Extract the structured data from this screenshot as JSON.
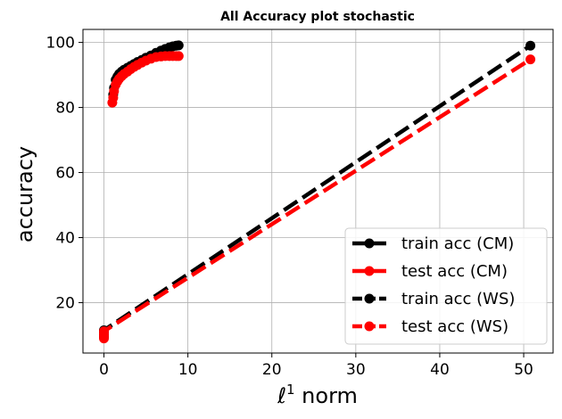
{
  "chart_data": {
    "type": "line",
    "title": "All Accuracy plot stochastic",
    "xlabel_prefix": "ℓ",
    "xlabel_sup": "1",
    "xlabel_suffix": " norm",
    "ylabel": "accuracy",
    "xlim": [
      -2.5,
      53.5
    ],
    "ylim": [
      4.5,
      104
    ],
    "xticks": [
      0,
      10,
      20,
      30,
      40,
      50
    ],
    "yticks": [
      20,
      40,
      60,
      80,
      100
    ],
    "grid": true,
    "legend_position": "lower-right",
    "series": [
      {
        "name": "train acc (CM)",
        "color": "#000000",
        "linestyle": "solid",
        "x": [
          1.1,
          1.2,
          1.4,
          1.6,
          1.8,
          2.1,
          2.4,
          2.8,
          3.2,
          3.6,
          4.0,
          4.5,
          5.0,
          5.6,
          6.2,
          6.8,
          7.3,
          7.8,
          8.2,
          8.6,
          8.9
        ],
        "y": [
          84.0,
          86.0,
          88.5,
          89.5,
          90.3,
          91.0,
          91.6,
          92.2,
          92.8,
          93.4,
          94.0,
          94.6,
          95.3,
          96.0,
          96.8,
          97.5,
          98.0,
          98.5,
          98.8,
          99.0,
          99.1
        ]
      },
      {
        "name": "test acc (CM)",
        "color": "#ff0000",
        "linestyle": "solid",
        "x": [
          1.0,
          1.1,
          1.2,
          1.4,
          1.6,
          1.8,
          2.1,
          2.4,
          2.8,
          3.2,
          3.6,
          4.0,
          4.5,
          5.0,
          5.6,
          6.2,
          6.8,
          7.3,
          7.8,
          8.2,
          8.6,
          8.9
        ],
        "y": [
          81.5,
          83.0,
          85.0,
          87.0,
          88.0,
          88.8,
          89.6,
          90.3,
          91.0,
          91.8,
          92.5,
          93.1,
          93.8,
          94.4,
          95.0,
          95.5,
          95.7,
          95.8,
          95.8,
          95.8,
          95.8,
          95.8
        ]
      },
      {
        "name": "train acc (WS)",
        "color": "#000000",
        "linestyle": "dashed",
        "x": [
          0.0,
          0.0,
          0.0,
          0.0,
          50.8
        ],
        "y": [
          9.5,
          10.2,
          11.0,
          11.5,
          99.0
        ]
      },
      {
        "name": "test acc (WS)",
        "color": "#ff0000",
        "linestyle": "dashed",
        "x": [
          0.0,
          0.0,
          0.0,
          0.0,
          50.8
        ],
        "y": [
          9.0,
          9.8,
          10.5,
          11.2,
          94.8
        ]
      }
    ]
  }
}
